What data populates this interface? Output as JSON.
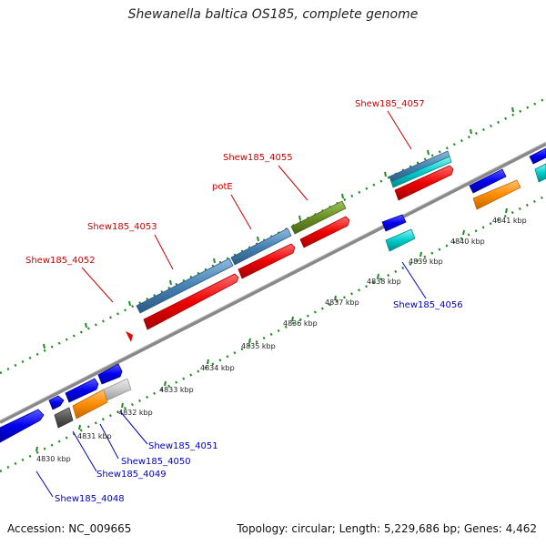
{
  "title": "Shewanella baltica OS185, complete genome",
  "accession_line": "Accession: NC_009665",
  "info_line": "Topology: circular; Length: 5,229,686 bp; Genes: 4,462",
  "tick_labels": [
    "4830 kbp",
    "4831 kbp",
    "4832 kbp",
    "4833 kbp",
    "4834 kbp",
    "4835 kbp",
    "4836 kbp",
    "4837 kbp",
    "4838 kbp",
    "4839 kbp",
    "4840 kbp",
    "4841 kbp"
  ],
  "gene_labels_top": [
    "Shew185_4052",
    "Shew185_4053",
    "potE",
    "Shew185_4055",
    "Shew185_4057"
  ],
  "gene_labels_bottom": [
    "Shew185_4048",
    "Shew185_4049",
    "Shew185_4050",
    "Shew185_4051",
    "Shew185_4056"
  ],
  "colors": {
    "steelblue": "#4682b4",
    "red": "#ee0000",
    "olive": "#6b8e23",
    "blue": "#0000ee",
    "cyan": "#00cccc",
    "orange": "#ff8c00",
    "gray": "#c8c8c8",
    "darkgray": "#555555",
    "backbone": "#808080",
    "dots": "#228b22"
  }
}
